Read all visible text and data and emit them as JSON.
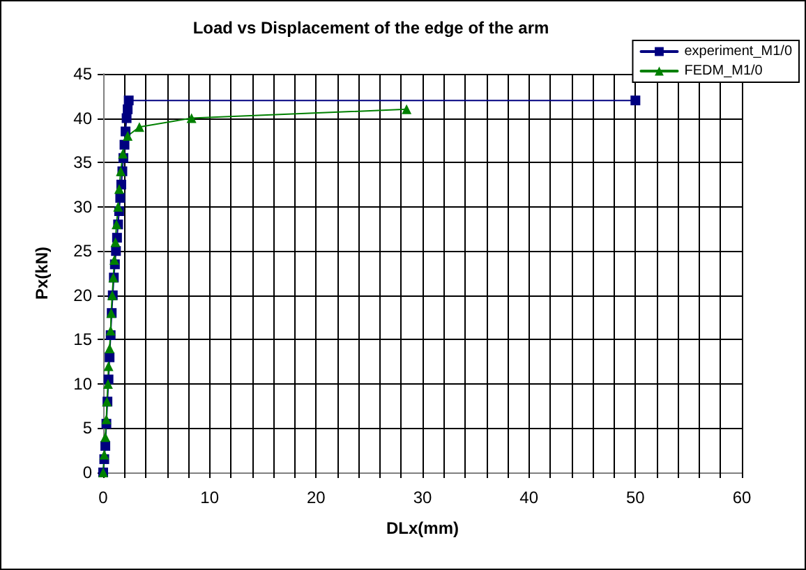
{
  "chart_data": {
    "type": "line",
    "title": "Load vs Displacement of the edge of the arm",
    "xlabel": "DLx(mm)",
    "ylabel": "Px(kN)",
    "series": [
      {
        "name": "experiment_M1/0",
        "color": "#000080",
        "marker": "square",
        "x": [
          0,
          0.1,
          0.2,
          0.3,
          0.4,
          0.5,
          0.6,
          0.7,
          0.8,
          0.9,
          1.0,
          1.1,
          1.2,
          1.3,
          1.4,
          1.5,
          1.6,
          1.7,
          1.8,
          1.9,
          2.0,
          2.1,
          2.2,
          2.3,
          2.4,
          50
        ],
        "values": [
          0,
          1.5,
          3,
          5.5,
          8,
          10.5,
          13,
          15.5,
          18,
          20,
          22,
          23.5,
          25,
          26.5,
          28,
          29.5,
          31,
          32.5,
          34,
          35.5,
          37,
          38.5,
          40,
          41,
          42,
          42
        ]
      },
      {
        "name": "FEDM_M1/0",
        "color": "#008000",
        "marker": "triangle",
        "x": [
          0,
          0.1,
          0.2,
          0.3,
          0.35,
          0.45,
          0.5,
          0.6,
          0.7,
          0.75,
          0.85,
          0.95,
          1.05,
          1.15,
          1.25,
          1.4,
          1.5,
          1.65,
          1.85,
          2.3,
          3.4,
          8.3,
          28.5
        ],
        "values": [
          0,
          2,
          4,
          6,
          8,
          10,
          12,
          14,
          16,
          18,
          20,
          22,
          24,
          26,
          28,
          30,
          32,
          34,
          36,
          38,
          39,
          40,
          41
        ]
      }
    ],
    "xlim": [
      0,
      60
    ],
    "xticks": [
      0,
      {
        "value": 2,
        "label": null
      },
      {
        "value": 4,
        "label": null
      },
      {
        "value": 6,
        "label": null
      },
      {
        "value": 8,
        "label": null
      },
      10,
      {
        "value": 12,
        "label": null
      },
      {
        "value": 14,
        "label": null
      },
      {
        "value": 16,
        "label": null
      },
      {
        "value": 18,
        "label": null
      },
      20,
      {
        "value": 22,
        "label": null
      },
      {
        "value": 24,
        "label": null
      },
      {
        "value": 26,
        "label": null
      },
      {
        "value": 28,
        "label": null
      },
      30,
      {
        "value": 32,
        "label": null
      },
      {
        "value": 34,
        "label": null
      },
      {
        "value": 36,
        "label": null
      },
      {
        "value": 38,
        "label": null
      },
      40,
      {
        "value": 42,
        "label": null
      },
      {
        "value": 44,
        "label": null
      },
      {
        "value": 46,
        "label": null
      },
      {
        "value": 48,
        "label": null
      },
      50,
      {
        "value": 52,
        "label": null
      },
      {
        "value": 54,
        "label": null
      },
      {
        "value": 56,
        "label": null
      },
      {
        "value": 58,
        "label": null
      },
      60
    ],
    "ylim": [
      0,
      45
    ],
    "yticks": [
      0,
      5,
      10,
      15,
      20,
      25,
      30,
      35,
      40,
      45
    ],
    "grid": true,
    "legend": "top right",
    "line_style": "solid"
  }
}
